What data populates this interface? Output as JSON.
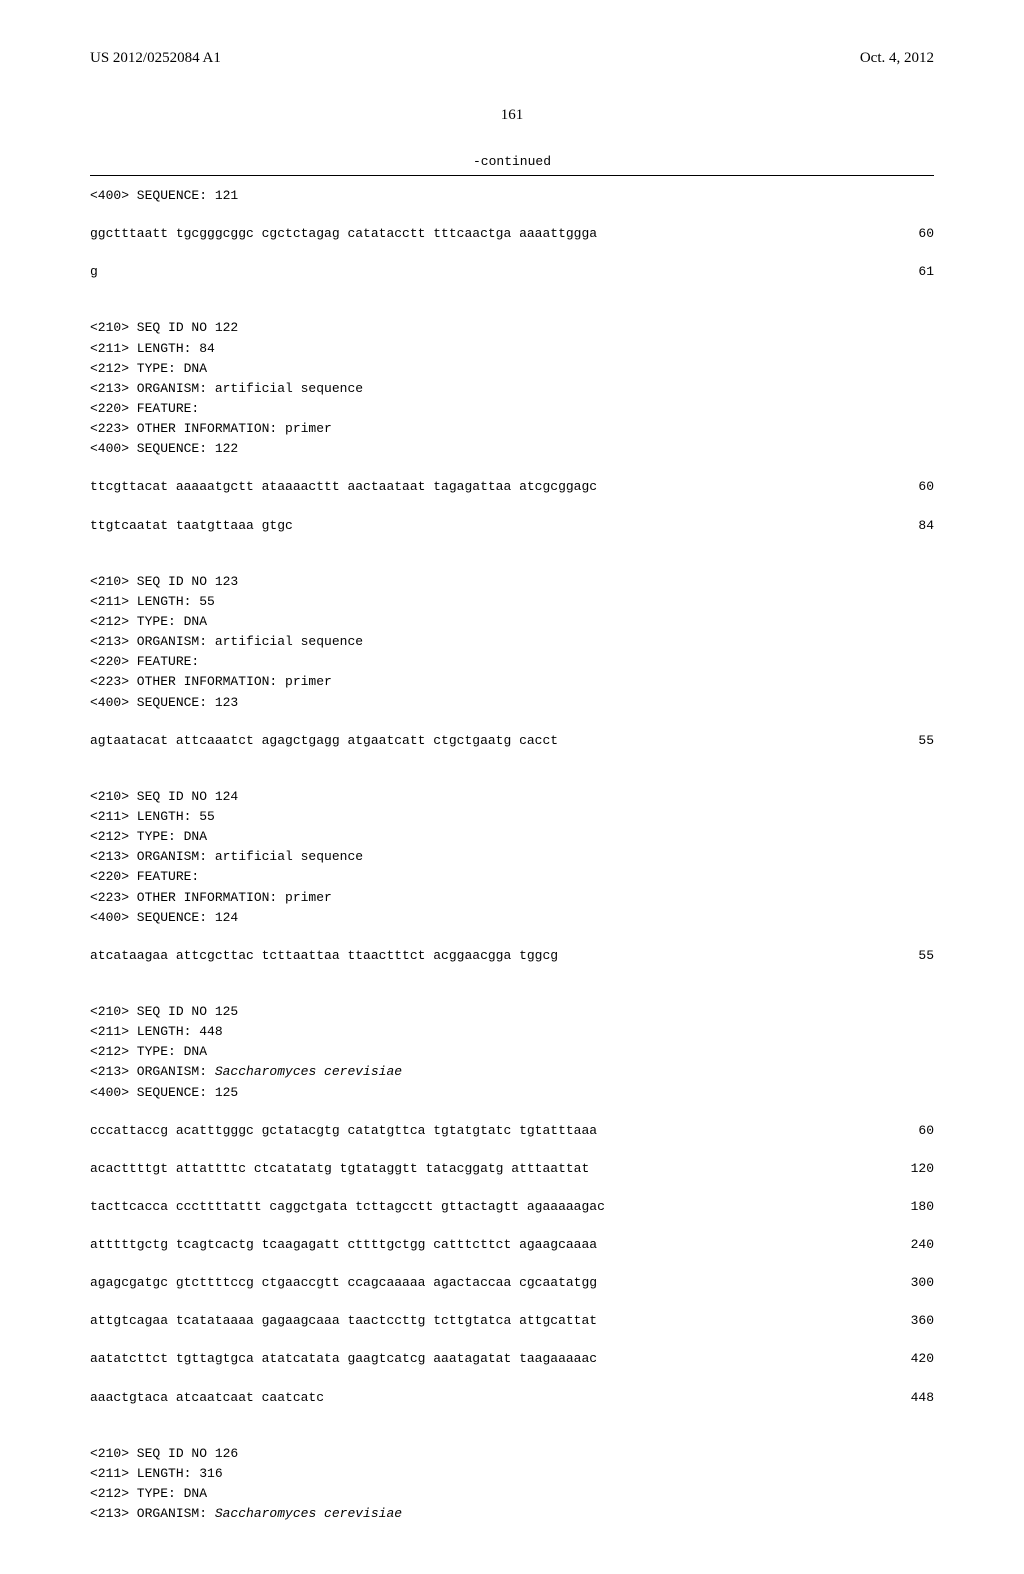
{
  "header": {
    "pub_number": "US 2012/0252084 A1",
    "pub_date": "Oct. 4, 2012"
  },
  "page_number": "161",
  "continued_label": "-continued",
  "entries": [
    {
      "meta": [
        "<400> SEQUENCE: 121"
      ],
      "seq": [
        {
          "text": "ggctttaatt tgcgggcggc cgctctagag catatacctt tttcaactga aaaattggga",
          "n": "60"
        },
        {
          "text": "g",
          "n": "61"
        }
      ]
    },
    {
      "meta": [
        "<210> SEQ ID NO 122",
        "<211> LENGTH: 84",
        "<212> TYPE: DNA",
        "<213> ORGANISM: artificial sequence",
        "<220> FEATURE:",
        "<223> OTHER INFORMATION: primer",
        "",
        "<400> SEQUENCE: 122"
      ],
      "seq": [
        {
          "text": "ttcgttacat aaaaatgctt ataaaacttt aactaataat tagagattaa atcgcggagc",
          "n": "60"
        },
        {
          "text": "ttgtcaatat taatgttaaa gtgc",
          "n": "84"
        }
      ]
    },
    {
      "meta": [
        "<210> SEQ ID NO 123",
        "<211> LENGTH: 55",
        "<212> TYPE: DNA",
        "<213> ORGANISM: artificial sequence",
        "<220> FEATURE:",
        "<223> OTHER INFORMATION: primer",
        "",
        "<400> SEQUENCE: 123"
      ],
      "seq": [
        {
          "text": "agtaatacat attcaaatct agagctgagg atgaatcatt ctgctgaatg cacct",
          "n": "55"
        }
      ]
    },
    {
      "meta": [
        "<210> SEQ ID NO 124",
        "<211> LENGTH: 55",
        "<212> TYPE: DNA",
        "<213> ORGANISM: artificial sequence",
        "<220> FEATURE:",
        "<223> OTHER INFORMATION: primer",
        "",
        "<400> SEQUENCE: 124"
      ],
      "seq": [
        {
          "text": "atcataagaa attcgcttac tcttaattaa ttaactttct acggaacgga tggcg",
          "n": "55"
        }
      ]
    },
    {
      "meta": [
        "<210> SEQ ID NO 125",
        "<211> LENGTH: 448",
        "<212> TYPE: DNA",
        "<213> ORGANISM: Saccharomyces cerevisiae",
        "",
        "<400> SEQUENCE: 125"
      ],
      "organism_italic": true,
      "seq": [
        {
          "text": "cccattaccg acatttgggc gctatacgtg catatgttca tgtatgtatc tgtatttaaa",
          "n": "60"
        },
        {
          "text": "acacttttgt attattttc ctcatatatg tgtataggtt tatacggatg atttaattat",
          "n": "120"
        },
        {
          "text": "tacttcacca cccttttattt caggctgata tcttagcctt gttactagtt agaaaaagac",
          "n": "180"
        },
        {
          "text": "atttttgctg tcagtcactg tcaagagatt cttttgctgg catttcttct agaagcaaaa",
          "n": "240"
        },
        {
          "text": "agagcgatgc gtcttttccg ctgaaccgtt ccagcaaaaa agactaccaa cgcaatatgg",
          "n": "300"
        },
        {
          "text": "attgtcagaa tcatataaaa gagaagcaaa taactccttg tcttgtatca attgcattat",
          "n": "360"
        },
        {
          "text": "aatatcttct tgttagtgca atatcatata gaagtcatcg aaatagatat taagaaaaac",
          "n": "420"
        },
        {
          "text": "aaactgtaca atcaatcaat caatcatc",
          "n": "448"
        }
      ]
    },
    {
      "meta": [
        "<210> SEQ ID NO 126",
        "<211> LENGTH: 316",
        "<212> TYPE: DNA",
        "<213> ORGANISM: Saccharomyces cerevisiae"
      ],
      "organism_italic": true,
      "seq": []
    }
  ]
}
